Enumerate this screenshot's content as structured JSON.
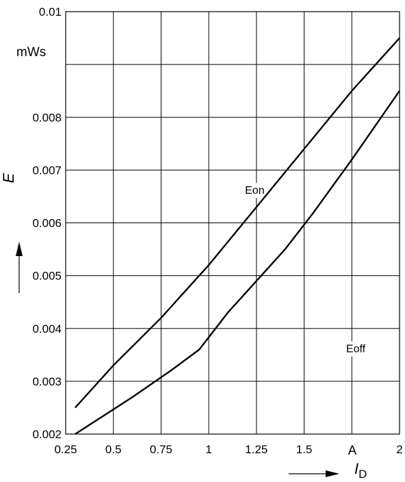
{
  "chart_data": {
    "type": "line",
    "title": "",
    "xlabel": {
      "symbol": "I",
      "subscript": "D"
    },
    "ylabel": "E",
    "x_unit": "A",
    "y_unit": "mWs",
    "xlim": [
      0.25,
      2
    ],
    "ylim": [
      0.002,
      0.01
    ],
    "grid": true,
    "x_ticks": [
      {
        "value": 0.25,
        "label": "0.25"
      },
      {
        "value": 0.5,
        "label": "0.5"
      },
      {
        "value": 0.75,
        "label": "0.75"
      },
      {
        "value": 1,
        "label": "1"
      },
      {
        "value": 1.25,
        "label": "1.25"
      },
      {
        "value": 1.5,
        "label": "1.5"
      },
      {
        "value": 1.75,
        "label": ""
      },
      {
        "value": 2,
        "label": "2"
      }
    ],
    "y_ticks": [
      {
        "value": 0.002,
        "label": "0.002"
      },
      {
        "value": 0.003,
        "label": "0.003"
      },
      {
        "value": 0.004,
        "label": "0.004"
      },
      {
        "value": 0.005,
        "label": "0.005"
      },
      {
        "value": 0.006,
        "label": "0.006"
      },
      {
        "value": 0.007,
        "label": "0.007"
      },
      {
        "value": 0.008,
        "label": "0.008"
      },
      {
        "value": 0.009,
        "label": ""
      },
      {
        "value": 0.01,
        "label": "0.01"
      }
    ],
    "series": [
      {
        "name": "Eon",
        "label_at": [
          1.19,
          0.00655
        ],
        "x": [
          0.3,
          0.5,
          0.75,
          1.0,
          1.25,
          1.5,
          1.75,
          2.0
        ],
        "y": [
          0.0025,
          0.0033,
          0.0042,
          0.0052,
          0.0063,
          0.0074,
          0.0085,
          0.0095
        ]
      },
      {
        "name": "Eoff",
        "label_at": [
          1.72,
          0.00355
        ],
        "x": [
          0.3,
          0.45,
          0.6,
          0.8,
          0.95,
          1.1,
          1.25,
          1.4,
          1.55,
          1.75,
          2.0
        ],
        "y": [
          0.002,
          0.00235,
          0.0027,
          0.0032,
          0.0036,
          0.0043,
          0.0049,
          0.0055,
          0.0062,
          0.0072,
          0.0085
        ]
      }
    ]
  }
}
